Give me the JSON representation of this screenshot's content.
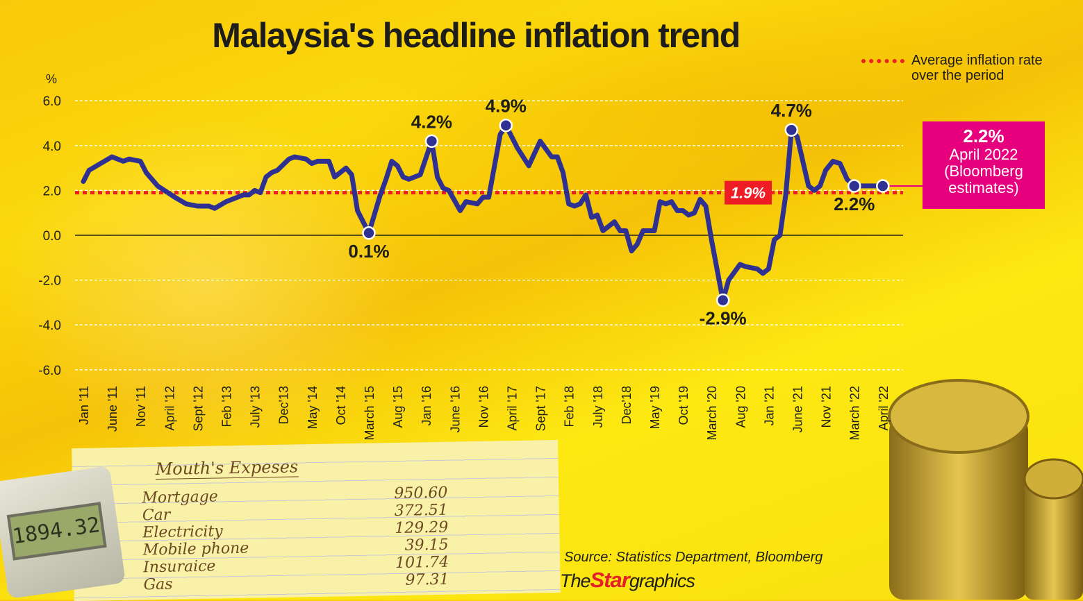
{
  "title": "Malaysia's headline inflation trend",
  "legend": {
    "label": "Average inflation rate over the period",
    "color": "#ee1c25"
  },
  "callout": {
    "value": "2.2%",
    "line1": "April 2022",
    "line2": "(Bloomberg",
    "line3": "estimates)",
    "color": "#e6007e"
  },
  "source": "Source: Statistics Department, Bloomberg",
  "logo": {
    "the": "The",
    "star": "Star",
    "graphics": "graphics"
  },
  "background_photo": {
    "notepad_heading": "Mouth's Expeses",
    "notepad_rows": [
      {
        "item": "Mortgage",
        "amount": "950.60"
      },
      {
        "item": "Car",
        "amount": "372.51"
      },
      {
        "item": "Electricity",
        "amount": "129.29"
      },
      {
        "item": "Mobile phone",
        "amount": "39.15"
      },
      {
        "item": "Insuraice",
        "amount": "101.74"
      },
      {
        "item": "Gas",
        "amount": "97.31"
      }
    ],
    "calculator_display": "1894.32"
  },
  "chart_data": {
    "type": "line",
    "title": "Malaysia's headline inflation trend",
    "ylabel": "%",
    "ylim": [
      -6,
      6
    ],
    "yticks": [
      "6.0",
      "4.0",
      "2.0",
      "0.0",
      "-2.0",
      "-4.0",
      "-6.0"
    ],
    "ytick_values": [
      6,
      4,
      2,
      0,
      -2,
      -4,
      -6
    ],
    "grid": true,
    "legend_position": "top-right",
    "line_color": "#2e3192",
    "average": {
      "value": 1.9,
      "label": "1.9%"
    },
    "xticks": [
      {
        "label": "Jan '11",
        "date": "2011-01"
      },
      {
        "label": "June '11",
        "date": "2011-06"
      },
      {
        "label": "Nov '11",
        "date": "2011-11"
      },
      {
        "label": "April '12",
        "date": "2012-04"
      },
      {
        "label": "Sept '12",
        "date": "2012-09"
      },
      {
        "label": "Feb '13",
        "date": "2013-02"
      },
      {
        "label": "July '13",
        "date": "2013-07"
      },
      {
        "label": "Dec'13",
        "date": "2013-12"
      },
      {
        "label": "May '14",
        "date": "2014-05"
      },
      {
        "label": "Oct '14",
        "date": "2014-10"
      },
      {
        "label": "March '15",
        "date": "2015-03"
      },
      {
        "label": "Aug '15",
        "date": "2015-08"
      },
      {
        "label": "Jan '16",
        "date": "2016-01"
      },
      {
        "label": "June '16",
        "date": "2016-06"
      },
      {
        "label": "Nov '16",
        "date": "2016-11"
      },
      {
        "label": "April '17",
        "date": "2017-04"
      },
      {
        "label": "Sept '17",
        "date": "2017-09"
      },
      {
        "label": "Feb '18",
        "date": "2018-02"
      },
      {
        "label": "July '18",
        "date": "2018-07"
      },
      {
        "label": "Dec'18",
        "date": "2018-12"
      },
      {
        "label": "May '19",
        "date": "2019-05"
      },
      {
        "label": "Oct '19",
        "date": "2019-10"
      },
      {
        "label": "March '20",
        "date": "2020-03"
      },
      {
        "label": "Aug '20",
        "date": "2020-08"
      },
      {
        "label": "Jan '21",
        "date": "2021-01"
      },
      {
        "label": "June '21",
        "date": "2021-06"
      },
      {
        "label": "Nov '21",
        "date": "2021-11"
      },
      {
        "label": "March '22",
        "date": "2022-03"
      },
      {
        "label": "April '22",
        "date": "2022-04"
      }
    ],
    "series": [
      [
        "2011-01",
        2.4
      ],
      [
        "2011-02",
        2.9
      ],
      [
        "2011-04",
        3.2
      ],
      [
        "2011-06",
        3.5
      ],
      [
        "2011-08",
        3.3
      ],
      [
        "2011-09",
        3.4
      ],
      [
        "2011-11",
        3.3
      ],
      [
        "2011-12",
        2.8
      ],
      [
        "2012-02",
        2.2
      ],
      [
        "2012-05",
        1.7
      ],
      [
        "2012-07",
        1.4
      ],
      [
        "2012-09",
        1.3
      ],
      [
        "2012-11",
        1.3
      ],
      [
        "2012-12",
        1.2
      ],
      [
        "2013-02",
        1.5
      ],
      [
        "2013-05",
        1.8
      ],
      [
        "2013-06",
        1.8
      ],
      [
        "2013-07",
        2.0
      ],
      [
        "2013-08",
        1.9
      ],
      [
        "2013-09",
        2.6
      ],
      [
        "2013-10",
        2.8
      ],
      [
        "2013-11",
        2.9
      ],
      [
        "2014-01",
        3.4
      ],
      [
        "2014-02",
        3.5
      ],
      [
        "2014-04",
        3.4
      ],
      [
        "2014-05",
        3.2
      ],
      [
        "2014-06",
        3.3
      ],
      [
        "2014-08",
        3.3
      ],
      [
        "2014-09",
        2.6
      ],
      [
        "2014-11",
        3.0
      ],
      [
        "2014-12",
        2.7
      ],
      [
        "2015-01",
        1.1
      ],
      [
        "2015-03",
        0.1
      ],
      [
        "2015-05",
        1.8
      ],
      [
        "2015-06",
        2.5
      ],
      [
        "2015-07",
        3.3
      ],
      [
        "2015-08",
        3.1
      ],
      [
        "2015-09",
        2.6
      ],
      [
        "2015-10",
        2.5
      ],
      [
        "2015-12",
        2.7
      ],
      [
        "2016-02",
        4.2
      ],
      [
        "2016-03",
        2.6
      ],
      [
        "2016-04",
        2.1
      ],
      [
        "2016-05",
        2.0
      ],
      [
        "2016-07",
        1.1
      ],
      [
        "2016-08",
        1.5
      ],
      [
        "2016-10",
        1.4
      ],
      [
        "2016-11",
        1.7
      ],
      [
        "2016-12",
        1.7
      ],
      [
        "2017-02",
        4.5
      ],
      [
        "2017-03",
        4.9
      ],
      [
        "2017-05",
        3.9
      ],
      [
        "2017-07",
        3.1
      ],
      [
        "2017-09",
        4.2
      ],
      [
        "2017-11",
        3.5
      ],
      [
        "2017-12",
        3.5
      ],
      [
        "2018-01",
        2.8
      ],
      [
        "2018-02",
        1.4
      ],
      [
        "2018-03",
        1.3
      ],
      [
        "2018-04",
        1.4
      ],
      [
        "2018-05",
        1.8
      ],
      [
        "2018-06",
        0.8
      ],
      [
        "2018-07",
        0.9
      ],
      [
        "2018-08",
        0.2
      ],
      [
        "2018-10",
        0.6
      ],
      [
        "2018-11",
        0.2
      ],
      [
        "2018-12",
        0.2
      ],
      [
        "2019-01",
        -0.7
      ],
      [
        "2019-02",
        -0.4
      ],
      [
        "2019-03",
        0.2
      ],
      [
        "2019-05",
        0.2
      ],
      [
        "2019-06",
        1.5
      ],
      [
        "2019-07",
        1.4
      ],
      [
        "2019-08",
        1.5
      ],
      [
        "2019-09",
        1.1
      ],
      [
        "2019-10",
        1.1
      ],
      [
        "2019-11",
        0.9
      ],
      [
        "2019-12",
        1.0
      ],
      [
        "2020-01",
        1.6
      ],
      [
        "2020-02",
        1.3
      ],
      [
        "2020-03",
        -0.2
      ],
      [
        "2020-05",
        -2.9
      ],
      [
        "2020-06",
        -2.0
      ],
      [
        "2020-08",
        -1.3
      ],
      [
        "2020-09",
        -1.4
      ],
      [
        "2020-11",
        -1.5
      ],
      [
        "2020-12",
        -1.7
      ],
      [
        "2021-01",
        -1.5
      ],
      [
        "2021-02",
        -0.2
      ],
      [
        "2021-03",
        0.0
      ],
      [
        "2021-04",
        1.8
      ],
      [
        "2021-05",
        4.7
      ],
      [
        "2021-06",
        4.4
      ],
      [
        "2021-08",
        2.2
      ],
      [
        "2021-09",
        2.0
      ],
      [
        "2021-10",
        2.2
      ],
      [
        "2021-11",
        2.9
      ],
      [
        "2021-12",
        3.3
      ],
      [
        "2022-01",
        3.2
      ],
      [
        "2022-02",
        2.5
      ],
      [
        "2022-03",
        2.2
      ],
      [
        "2022-04",
        2.2
      ]
    ],
    "annotations": [
      {
        "date": "2015-03",
        "value": 0.1,
        "label": "0.1%",
        "position": "below"
      },
      {
        "date": "2016-02",
        "value": 4.2,
        "label": "4.2%",
        "position": "above"
      },
      {
        "date": "2017-03",
        "value": 4.9,
        "label": "4.9%",
        "position": "above"
      },
      {
        "date": "2020-05",
        "value": -2.9,
        "label": "-2.9%",
        "position": "below"
      },
      {
        "date": "2021-05",
        "value": 4.7,
        "label": "4.7%",
        "position": "above"
      },
      {
        "date": "2022-03",
        "value": 2.2,
        "label": "2.2%",
        "position": "below"
      },
      {
        "date": "2022-04",
        "value": 2.2,
        "label": "",
        "position": "none"
      }
    ]
  }
}
